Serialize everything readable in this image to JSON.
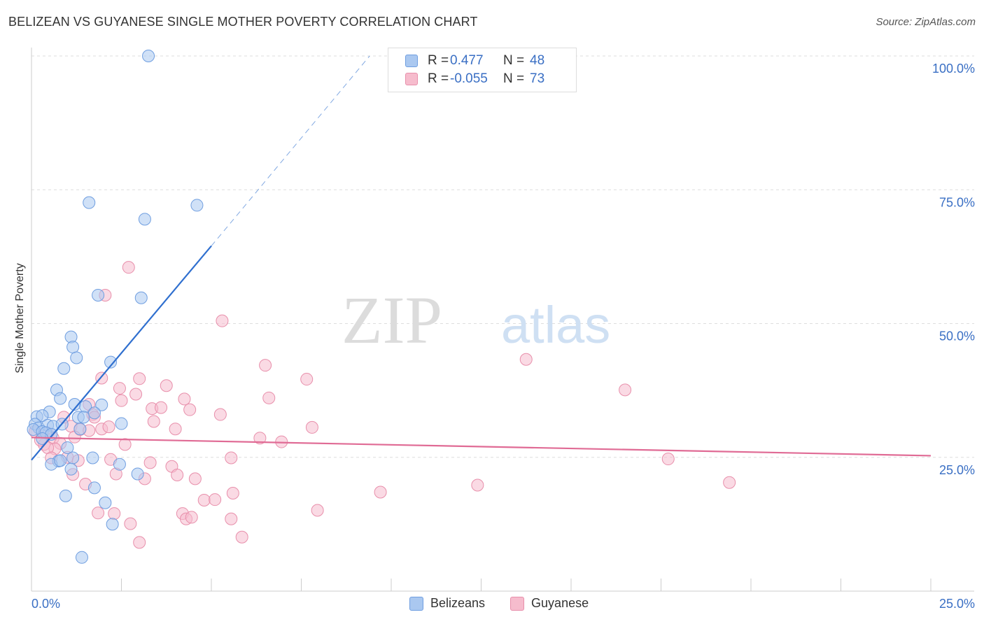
{
  "header": {
    "title": "BELIZEAN VS GUYANESE SINGLE MOTHER POVERTY CORRELATION CHART",
    "source": "Source: ZipAtlas.com"
  },
  "watermark": {
    "part1": "ZIP",
    "part2": "atlas"
  },
  "legend": {
    "r_label": "R =",
    "n_label": "N =",
    "rows": [
      {
        "r": "0.477",
        "n": "48",
        "color": "#4a86d4"
      },
      {
        "r": "-0.055",
        "n": "73",
        "color": "#e87fa0"
      }
    ]
  },
  "bottom_legend": {
    "items": [
      "Belizeans",
      "Guyanese"
    ]
  },
  "colors": {
    "blue_fill": "#aac8f0",
    "blue_stroke": "#6f9ee0",
    "blue_line": "#2f6fcf",
    "pink_fill": "#f6bccd",
    "pink_stroke": "#e88fab",
    "pink_line": "#e06b95",
    "axis_label": "#3a6fc4"
  },
  "chart_data": {
    "type": "scatter",
    "title": "BELIZEAN VS GUYANESE SINGLE MOTHER POVERTY CORRELATION CHART",
    "xlabel": "",
    "ylabel": "Single Mother Poverty",
    "xlim": [
      0,
      25
    ],
    "ylim": [
      0,
      100
    ],
    "x_tick_labels": [
      "0.0%",
      "25.0%"
    ],
    "y_ticks": [
      25,
      50,
      75,
      100
    ],
    "y_tick_labels": [
      "25.0%",
      "50.0%",
      "75.0%",
      "100.0%"
    ],
    "series": [
      {
        "name": "Belizeans",
        "r": 0.477,
        "n": 48,
        "trend": {
          "x0": 0,
          "y0": 24.5,
          "x1": 5.0,
          "y1": 64.5,
          "dash_to_x": 9.4,
          "dash_to_y": 100
        },
        "points": [
          [
            3.25,
            100
          ],
          [
            1.6,
            72.6
          ],
          [
            4.6,
            72.1
          ],
          [
            3.15,
            69.5
          ],
          [
            1.85,
            55.3
          ],
          [
            3.05,
            54.8
          ],
          [
            1.1,
            47.5
          ],
          [
            1.15,
            45.6
          ],
          [
            1.25,
            43.6
          ],
          [
            2.2,
            42.8
          ],
          [
            0.9,
            41.6
          ],
          [
            0.7,
            37.6
          ],
          [
            0.8,
            36.0
          ],
          [
            1.2,
            34.9
          ],
          [
            1.5,
            34.5
          ],
          [
            1.95,
            34.8
          ],
          [
            0.5,
            33.5
          ],
          [
            0.15,
            32.6
          ],
          [
            0.3,
            32.8
          ],
          [
            1.3,
            32.5
          ],
          [
            1.45,
            32.5
          ],
          [
            1.75,
            33.3
          ],
          [
            0.1,
            31.2
          ],
          [
            0.2,
            30.5
          ],
          [
            0.45,
            31.0
          ],
          [
            0.6,
            30.8
          ],
          [
            0.85,
            31.2
          ],
          [
            1.35,
            30.3
          ],
          [
            0.05,
            30.2
          ],
          [
            0.3,
            29.8
          ],
          [
            0.4,
            29.6
          ],
          [
            0.55,
            29.3
          ],
          [
            2.5,
            31.3
          ],
          [
            0.3,
            28.5
          ],
          [
            1.0,
            26.8
          ],
          [
            0.75,
            24.3
          ],
          [
            1.15,
            24.9
          ],
          [
            1.7,
            24.9
          ],
          [
            2.45,
            23.7
          ],
          [
            0.55,
            23.7
          ],
          [
            1.1,
            22.8
          ],
          [
            2.95,
            21.9
          ],
          [
            1.75,
            19.3
          ],
          [
            0.95,
            17.8
          ],
          [
            2.05,
            16.5
          ],
          [
            2.25,
            12.5
          ],
          [
            1.4,
            6.3
          ],
          [
            0.8,
            24.4
          ]
        ]
      },
      {
        "name": "Guyanese",
        "r": -0.055,
        "n": 73,
        "trend": {
          "x0": 0,
          "y0": 28.7,
          "x1": 25,
          "y1": 25.3
        },
        "points": [
          [
            2.7,
            60.5
          ],
          [
            2.05,
            55.3
          ],
          [
            5.3,
            50.5
          ],
          [
            13.75,
            43.3
          ],
          [
            6.5,
            42.2
          ],
          [
            7.65,
            39.6
          ],
          [
            1.95,
            39.8
          ],
          [
            3.0,
            39.7
          ],
          [
            3.75,
            38.4
          ],
          [
            2.45,
            37.9
          ],
          [
            2.9,
            36.8
          ],
          [
            6.6,
            36.1
          ],
          [
            4.25,
            35.9
          ],
          [
            2.5,
            35.6
          ],
          [
            1.6,
            34.9
          ],
          [
            3.35,
            34.1
          ],
          [
            3.6,
            34.3
          ],
          [
            4.4,
            33.9
          ],
          [
            1.7,
            33.0
          ],
          [
            5.25,
            33.0
          ],
          [
            16.5,
            37.6
          ],
          [
            0.9,
            32.5
          ],
          [
            1.75,
            32.5
          ],
          [
            3.4,
            31.7
          ],
          [
            1.1,
            30.8
          ],
          [
            1.35,
            30.2
          ],
          [
            1.95,
            30.3
          ],
          [
            2.15,
            30.7
          ],
          [
            1.6,
            30.0
          ],
          [
            4.0,
            30.3
          ],
          [
            7.8,
            30.6
          ],
          [
            0.1,
            29.8
          ],
          [
            0.45,
            29.5
          ],
          [
            0.6,
            28.6
          ],
          [
            1.2,
            28.8
          ],
          [
            6.35,
            28.6
          ],
          [
            6.95,
            27.9
          ],
          [
            0.35,
            27.4
          ],
          [
            0.8,
            27.6
          ],
          [
            0.65,
            26.6
          ],
          [
            2.6,
            27.4
          ],
          [
            0.45,
            26.8
          ],
          [
            1.0,
            25.0
          ],
          [
            0.55,
            24.9
          ],
          [
            1.3,
            24.4
          ],
          [
            2.2,
            24.6
          ],
          [
            5.55,
            24.9
          ],
          [
            3.3,
            24.0
          ],
          [
            3.9,
            23.3
          ],
          [
            2.35,
            21.9
          ],
          [
            3.15,
            21.0
          ],
          [
            4.05,
            21.7
          ],
          [
            4.55,
            21.0
          ],
          [
            1.15,
            21.8
          ],
          [
            1.5,
            20.0
          ],
          [
            12.4,
            19.8
          ],
          [
            19.4,
            20.3
          ],
          [
            17.7,
            24.7
          ],
          [
            9.7,
            18.5
          ],
          [
            5.6,
            18.3
          ],
          [
            4.8,
            17.0
          ],
          [
            5.1,
            17.1
          ],
          [
            7.95,
            15.1
          ],
          [
            4.2,
            14.5
          ],
          [
            2.3,
            14.5
          ],
          [
            4.3,
            13.5
          ],
          [
            4.45,
            13.8
          ],
          [
            5.55,
            13.5
          ],
          [
            2.75,
            12.6
          ],
          [
            5.85,
            10.1
          ],
          [
            3.0,
            9.1
          ],
          [
            1.85,
            14.6
          ],
          [
            0.25,
            28.2
          ]
        ]
      }
    ]
  }
}
